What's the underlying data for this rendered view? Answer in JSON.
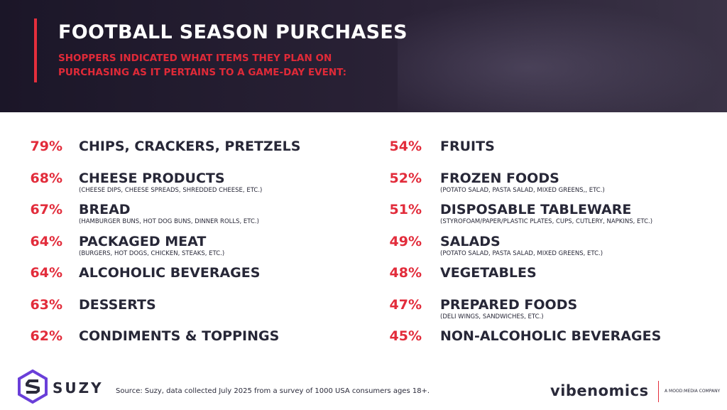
{
  "header": {
    "title": "FOOTBALL SEASON PURCHASES",
    "subtitle": "SHOPPERS INDICATED WHAT ITEMS THEY PLAN ON PURCHASING AS IT PERTAINS TO A GAME-DAY EVENT:"
  },
  "colors": {
    "accent": "#e22c3b",
    "text": "#272737",
    "header_bg": "#1b1628"
  },
  "chart_data": {
    "type": "table",
    "columns": [
      [
        {
          "percent": "79%",
          "value": 79,
          "label": "CHIPS, CRACKERS, PRETZELS",
          "note": ""
        },
        {
          "percent": "68%",
          "value": 68,
          "label": "CHEESE PRODUCTS",
          "note": "(CHEESE DIPS, CHEESE SPREADS, SHREDDED CHEESE, ETC.)"
        },
        {
          "percent": "67%",
          "value": 67,
          "label": "BREAD",
          "note": "(HAMBURGER BUNS, HOT DOG BUNS, DINNER ROLLS, ETC.)"
        },
        {
          "percent": "64%",
          "value": 64,
          "label": "PACKAGED MEAT",
          "note": "(BURGERS, HOT DOGS, CHICKEN, STEAKS, ETC.)"
        },
        {
          "percent": "64%",
          "value": 64,
          "label": "ALCOHOLIC BEVERAGES",
          "note": ""
        },
        {
          "percent": "63%",
          "value": 63,
          "label": "DESSERTS",
          "note": ""
        },
        {
          "percent": "62%",
          "value": 62,
          "label": "CONDIMENTS & TOPPINGS",
          "note": ""
        }
      ],
      [
        {
          "percent": "54%",
          "value": 54,
          "label": "FRUITS",
          "note": ""
        },
        {
          "percent": "52%",
          "value": 52,
          "label": "FROZEN FOODS",
          "note": "(POTATO SALAD, PASTA SALAD, MIXED GREENS,, ETC.)"
        },
        {
          "percent": "51%",
          "value": 51,
          "label": "DISPOSABLE TABLEWARE",
          "note": "(STYROFOAM/PAPER/PLASTIC PLATES, CUPS, CUTLERY, NAPKINS, ETC.)"
        },
        {
          "percent": "49%",
          "value": 49,
          "label": "SALADS",
          "note": "(POTATO SALAD, PASTA SALAD, MIXED GREENS, ETC.)"
        },
        {
          "percent": "48%",
          "value": 48,
          "label": "VEGETABLES",
          "note": ""
        },
        {
          "percent": "47%",
          "value": 47,
          "label": "PREPARED FOODS",
          "note": "(DELI WINGS, SANDWICHES, ETC.)"
        },
        {
          "percent": "45%",
          "value": 45,
          "label": "NON-ALCOHOLIC BEVERAGES",
          "note": ""
        }
      ]
    ]
  },
  "footer": {
    "logo_text": "SUZY",
    "source": "Source: Suzy, data collected July 2025 from a survey of 1000 USA consumers ages 18+.",
    "partner_logo": "vibenomics",
    "partner_tagline": "A MOOD:MEDIA COMPANY"
  }
}
